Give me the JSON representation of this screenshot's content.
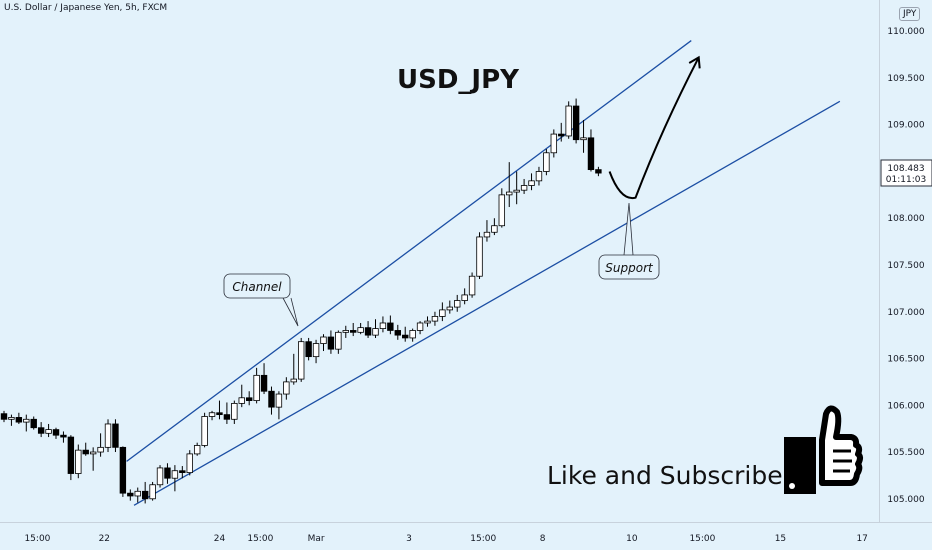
{
  "header": {
    "instrument": "U.S. Dollar / Japanese Yen, 5h, FXCM",
    "currency_badge": "JPY"
  },
  "annotations": {
    "title": "USD_JPY",
    "channel_label": "Channel",
    "support_label": "Support",
    "cta": "Like and Subscribe",
    "thumb_icon": "thumbs-up-icon"
  },
  "price_readout": {
    "price": "108.483",
    "countdown": "01:11:03"
  },
  "colors": {
    "background": "#e3f2fb",
    "candle_up": "#ffffff",
    "candle_down": "#000000",
    "trendline": "#1c4fa4",
    "projection": "#000000"
  },
  "chart_data": {
    "type": "candlestick",
    "title": "USD_JPY",
    "ylim": [
      104.88,
      110.12
    ],
    "y_ticks": [
      "110.000",
      "109.500",
      "109.000",
      "108.500",
      "108.000",
      "107.500",
      "107.000",
      "106.500",
      "106.000",
      "105.500",
      "105.000"
    ],
    "y_tick_values": [
      110.0,
      109.5,
      109.0,
      108.5,
      108.0,
      107.5,
      107.0,
      106.5,
      106.0,
      105.5,
      105.0
    ],
    "x_ticks": [
      {
        "label": "15:00",
        "bar": 4.5
      },
      {
        "label": "22",
        "bar": 13.5
      },
      {
        "label": "24",
        "bar": 29
      },
      {
        "label": "15:00",
        "bar": 34.5
      },
      {
        "label": "Mar",
        "bar": 42
      },
      {
        "label": "3",
        "bar": 54.5
      },
      {
        "label": "15:00",
        "bar": 64.5
      },
      {
        "label": "8",
        "bar": 72.5
      },
      {
        "label": "10",
        "bar": 84.5
      },
      {
        "label": "15:00",
        "bar": 94
      },
      {
        "label": "15",
        "bar": 104.5
      },
      {
        "label": "17",
        "bar": 115.5
      }
    ],
    "last_price": 108.483,
    "candles": [
      [
        105.91,
        105.94,
        105.82,
        105.85
      ],
      [
        105.85,
        105.9,
        105.78,
        105.87
      ],
      [
        105.87,
        105.92,
        105.8,
        105.82
      ],
      [
        105.82,
        105.9,
        105.72,
        105.85
      ],
      [
        105.85,
        105.88,
        105.74,
        105.76
      ],
      [
        105.76,
        105.82,
        105.66,
        105.7
      ],
      [
        105.7,
        105.8,
        105.66,
        105.74
      ],
      [
        105.74,
        105.76,
        105.64,
        105.68
      ],
      [
        105.68,
        105.72,
        105.6,
        105.66
      ],
      [
        105.66,
        105.68,
        105.2,
        105.27
      ],
      [
        105.27,
        105.58,
        105.22,
        105.52
      ],
      [
        105.52,
        105.6,
        105.46,
        105.48
      ],
      [
        105.48,
        105.55,
        105.3,
        105.5
      ],
      [
        105.5,
        105.7,
        105.45,
        105.55
      ],
      [
        105.55,
        105.85,
        105.5,
        105.8
      ],
      [
        105.8,
        105.85,
        105.5,
        105.55
      ],
      [
        105.55,
        105.56,
        105.02,
        105.06
      ],
      [
        105.06,
        105.1,
        104.98,
        105.03
      ],
      [
        105.03,
        105.12,
        104.96,
        105.08
      ],
      [
        105.08,
        105.18,
        104.95,
        105.0
      ],
      [
        105.0,
        105.18,
        104.98,
        105.15
      ],
      [
        105.15,
        105.36,
        105.12,
        105.33
      ],
      [
        105.33,
        105.38,
        105.16,
        105.22
      ],
      [
        105.22,
        105.36,
        105.08,
        105.3
      ],
      [
        105.3,
        105.35,
        105.22,
        105.28
      ],
      [
        105.28,
        105.52,
        105.25,
        105.48
      ],
      [
        105.48,
        105.6,
        105.46,
        105.57
      ],
      [
        105.57,
        105.92,
        105.55,
        105.88
      ],
      [
        105.88,
        105.94,
        105.84,
        105.92
      ],
      [
        105.92,
        106.05,
        105.85,
        105.9
      ],
      [
        105.9,
        106.03,
        105.8,
        105.85
      ],
      [
        105.85,
        106.05,
        105.8,
        106.02
      ],
      [
        106.02,
        106.22,
        105.98,
        106.08
      ],
      [
        106.08,
        106.15,
        106.0,
        106.05
      ],
      [
        106.05,
        106.4,
        106.02,
        106.32
      ],
      [
        106.32,
        106.45,
        106.12,
        106.15
      ],
      [
        106.15,
        106.2,
        105.9,
        105.98
      ],
      [
        105.98,
        106.15,
        105.85,
        106.12
      ],
      [
        106.12,
        106.3,
        106.06,
        106.25
      ],
      [
        106.25,
        106.55,
        106.22,
        106.28
      ],
      [
        106.28,
        106.72,
        106.25,
        106.68
      ],
      [
        106.68,
        106.72,
        106.48,
        106.52
      ],
      [
        106.52,
        106.7,
        106.45,
        106.66
      ],
      [
        106.66,
        106.76,
        106.58,
        106.73
      ],
      [
        106.73,
        106.8,
        106.55,
        106.6
      ],
      [
        106.6,
        106.8,
        106.55,
        106.78
      ],
      [
        106.78,
        106.85,
        106.72,
        106.8
      ],
      [
        106.8,
        106.88,
        106.74,
        106.78
      ],
      [
        106.78,
        106.88,
        106.76,
        106.83
      ],
      [
        106.83,
        106.9,
        106.72,
        106.75
      ],
      [
        106.75,
        106.92,
        106.72,
        106.82
      ],
      [
        106.82,
        106.95,
        106.78,
        106.88
      ],
      [
        106.88,
        106.96,
        106.76,
        106.8
      ],
      [
        106.8,
        106.86,
        106.7,
        106.75
      ],
      [
        106.75,
        106.84,
        106.68,
        106.72
      ],
      [
        106.72,
        106.82,
        106.68,
        106.8
      ],
      [
        106.8,
        106.9,
        106.76,
        106.88
      ],
      [
        106.88,
        106.95,
        106.84,
        106.9
      ],
      [
        106.9,
        107.0,
        106.85,
        106.95
      ],
      [
        106.95,
        107.1,
        106.9,
        107.02
      ],
      [
        107.02,
        107.12,
        106.98,
        107.05
      ],
      [
        107.05,
        107.18,
        107.0,
        107.12
      ],
      [
        107.12,
        107.25,
        107.08,
        107.18
      ],
      [
        107.18,
        107.42,
        107.15,
        107.38
      ],
      [
        107.38,
        107.85,
        107.35,
        107.8
      ],
      [
        107.8,
        107.98,
        107.75,
        107.85
      ],
      [
        107.85,
        108.0,
        107.82,
        107.92
      ],
      [
        107.92,
        108.32,
        107.9,
        108.25
      ],
      [
        108.25,
        108.6,
        108.12,
        108.28
      ],
      [
        108.28,
        108.5,
        108.15,
        108.3
      ],
      [
        108.3,
        108.42,
        108.26,
        108.35
      ],
      [
        108.35,
        108.48,
        108.3,
        108.4
      ],
      [
        108.4,
        108.55,
        108.35,
        108.5
      ],
      [
        108.5,
        108.74,
        108.46,
        108.7
      ],
      [
        108.7,
        108.95,
        108.65,
        108.9
      ],
      [
        108.9,
        109.02,
        108.82,
        108.88
      ],
      [
        108.88,
        109.25,
        108.85,
        109.2
      ],
      [
        109.2,
        109.28,
        108.8,
        108.84
      ],
      [
        108.84,
        109.05,
        108.7,
        108.86
      ],
      [
        108.86,
        108.95,
        108.5,
        108.52
      ],
      [
        108.52,
        108.55,
        108.45,
        108.483
      ]
    ],
    "trendlines": [
      {
        "name": "Channel",
        "from": {
          "bar": 16.5,
          "price": 105.4
        },
        "to": {
          "bar": 92.5,
          "price": 109.9
        }
      },
      {
        "name": "Support",
        "from": {
          "bar": 17.5,
          "price": 104.93
        },
        "to": {
          "bar": 112.5,
          "price": 109.25
        }
      }
    ],
    "projection": [
      {
        "bar": 81.5,
        "price": 108.5
      },
      {
        "bar": 83,
        "price": 108.18
      },
      {
        "bar": 85,
        "price": 108.22
      },
      {
        "bar": 88.5,
        "price": 108.95
      },
      {
        "bar": 93.5,
        "price": 109.72
      }
    ]
  }
}
